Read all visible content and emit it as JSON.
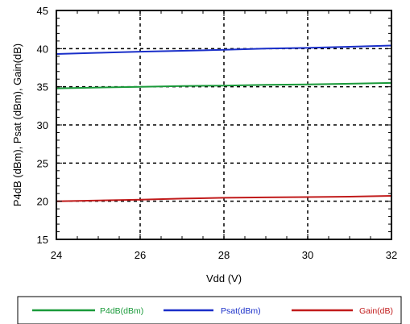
{
  "chart_data": {
    "type": "line",
    "title": "",
    "xlabel": "Vdd (V)",
    "ylabel": "P4dB (dBm), Psat (dBm), Gain(dB)",
    "xlim": [
      24,
      32
    ],
    "ylim": [
      15,
      45
    ],
    "xticks": [
      24,
      26,
      28,
      30,
      32
    ],
    "yticks": [
      15,
      20,
      25,
      30,
      35,
      40,
      45
    ],
    "grid": true,
    "legend_position": "bottom",
    "series": [
      {
        "name": "P4dB(dBm)",
        "color": "#1a9a3a",
        "x": [
          24,
          25,
          26,
          27,
          28,
          29,
          30,
          31,
          32
        ],
        "y": [
          34.8,
          34.9,
          35.0,
          35.1,
          35.15,
          35.25,
          35.3,
          35.4,
          35.5
        ]
      },
      {
        "name": "Psat(dBm)",
        "color": "#1a2fc9",
        "x": [
          24,
          25,
          26,
          27,
          28,
          29,
          30,
          31,
          32
        ],
        "y": [
          39.3,
          39.45,
          39.6,
          39.72,
          39.85,
          40.0,
          40.1,
          40.25,
          40.4
        ]
      },
      {
        "name": "Gain(dB)",
        "color": "#c11b1b",
        "x": [
          24,
          25,
          26,
          27,
          28,
          29,
          30,
          31,
          32
        ],
        "y": [
          20.0,
          20.1,
          20.2,
          20.35,
          20.45,
          20.5,
          20.55,
          20.6,
          20.7
        ]
      }
    ]
  }
}
